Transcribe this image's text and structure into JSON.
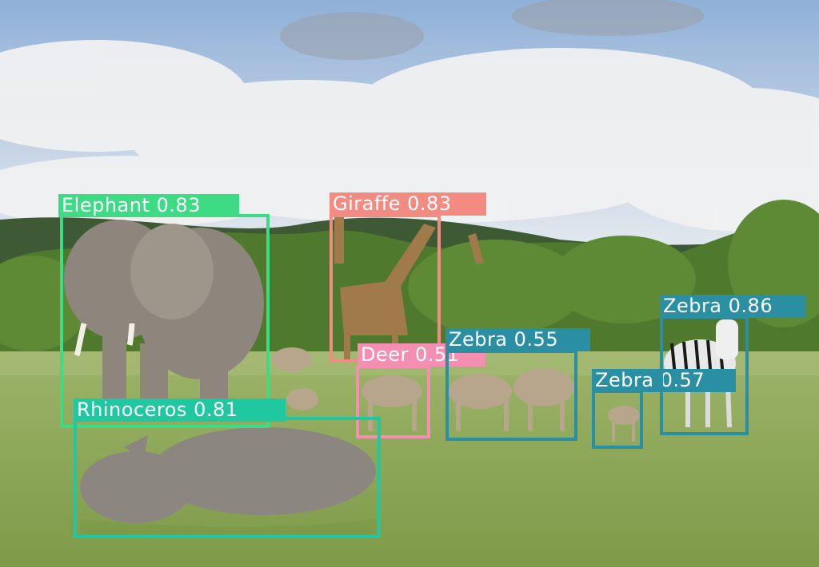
{
  "detections": [
    {
      "id": "elephant",
      "label": "Elephant 0.83",
      "class_name": "Elephant",
      "score": 0.83,
      "color": "#3ddc84"
    },
    {
      "id": "giraffe",
      "label": "Giraffe 0.83",
      "class_name": "Giraffe",
      "score": 0.83,
      "color": "#f28b82"
    },
    {
      "id": "deer",
      "label": "Deer 0.51",
      "class_name": "Deer",
      "score": 0.51,
      "color": "#f48fb1"
    },
    {
      "id": "zebra-mid",
      "label": "Zebra 0.55",
      "class_name": "Zebra",
      "score": 0.55,
      "color": "#2b8fa3"
    },
    {
      "id": "zebra-small",
      "label": "Zebra 0.57",
      "class_name": "Zebra",
      "score": 0.57,
      "color": "#2b8fa3"
    },
    {
      "id": "zebra-right",
      "label": "Zebra 0.86",
      "class_name": "Zebra",
      "score": 0.86,
      "color": "#2b8fa3"
    },
    {
      "id": "rhinoceros",
      "label": "Rhinoceros 0.81",
      "class_name": "Rhinoceros",
      "score": 0.81,
      "color": "#1fc8a0"
    }
  ]
}
